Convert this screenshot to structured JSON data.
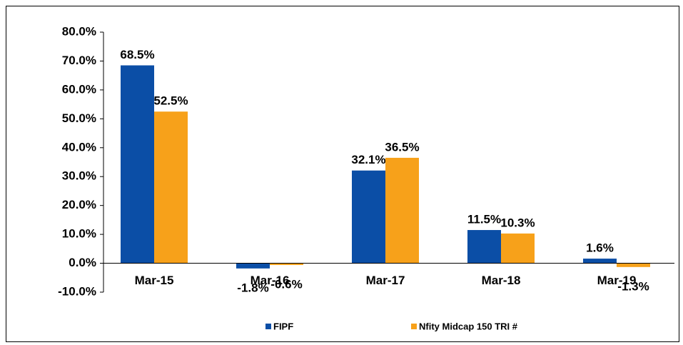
{
  "chart_data": {
    "type": "bar",
    "categories": [
      "Mar-15",
      "Mar-16",
      "Mar-17",
      "Mar-18",
      "Mar-19"
    ],
    "series": [
      {
        "name": "FIPF",
        "color": "#0b4ea6",
        "values": [
          68.5,
          -1.8,
          32.1,
          11.5,
          1.6
        ],
        "value_labels": [
          "68.5%",
          "-1.8%",
          "32.1%",
          "11.5%",
          "1.6%"
        ]
      },
      {
        "name": "Nfity Midcap 150 TRI #",
        "color": "#f7a11a",
        "values": [
          52.5,
          -0.6,
          36.5,
          10.3,
          -1.3
        ],
        "value_labels": [
          "52.5%",
          "-0.6%",
          "36.5%",
          "10.3%",
          "-1.3%"
        ]
      }
    ],
    "ylim": [
      -10,
      80
    ],
    "yticks": [
      {
        "value": -10,
        "label": "-10.0%"
      },
      {
        "value": 0,
        "label": "0.0%"
      },
      {
        "value": 10,
        "label": "10.0%"
      },
      {
        "value": 20,
        "label": "20.0%"
      },
      {
        "value": 30,
        "label": "30.0%"
      },
      {
        "value": 40,
        "label": "40.0%"
      },
      {
        "value": 50,
        "label": "50.0%"
      },
      {
        "value": 60,
        "label": "60.0%"
      },
      {
        "value": 70,
        "label": "70.0%"
      },
      {
        "value": 80,
        "label": "80.0%"
      }
    ],
    "grid": false,
    "legend": "bottom"
  }
}
